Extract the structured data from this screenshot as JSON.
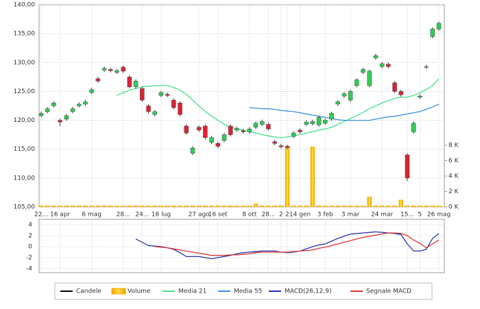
{
  "chart_data": {
    "type": "candlestick",
    "name": "Candele",
    "categories": [
      "22...",
      null,
      null,
      "16 apr",
      null,
      null,
      null,
      null,
      "6 mag",
      null,
      null,
      null,
      null,
      "28...",
      null,
      null,
      "24...",
      null,
      null,
      "16 lug",
      null,
      null,
      null,
      null,
      null,
      "27 ago",
      null,
      null,
      "16 set",
      null,
      null,
      null,
      null,
      "8 ott",
      null,
      null,
      "28...",
      null,
      "2",
      "2",
      null,
      "14 gen",
      null,
      null,
      null,
      "3 feb",
      null,
      null,
      null,
      "3 mar",
      null,
      null,
      null,
      null,
      "24 mar",
      null,
      null,
      null,
      "15...",
      null,
      "5",
      null,
      null,
      "26 mag"
    ],
    "open": [
      120.8,
      121.5,
      122.5,
      120,
      120.2,
      121.5,
      122.5,
      122.8,
      124.8,
      127.2,
      128.7,
      128.8,
      128.3,
      129.2,
      127.5,
      125.8,
      125.5,
      122.5,
      121,
      124.3,
      124.5,
      123.5,
      123,
      119,
      114.3,
      118.8,
      119,
      116.2,
      116,
      116.5,
      119,
      118.3,
      118.2,
      118,
      118.8,
      119.3,
      119.3,
      116.3,
      115.6,
      115.5,
      117.2,
      118.3,
      119.3,
      119.4,
      119.2,
      119.5,
      120.2,
      122.8,
      124.2,
      123.5,
      126,
      128.3,
      126,
      130.8,
      129.3,
      129.7,
      126.5,
      125,
      114,
      118,
      124,
      129.2,
      134.5,
      135.8
    ],
    "high": [
      121.5,
      122.3,
      123.3,
      120.3,
      121.1,
      122.3,
      123.1,
      123.5,
      125.6,
      127.5,
      129.3,
      129.1,
      128.9,
      129.5,
      127.8,
      127.1,
      125.8,
      122.8,
      121.8,
      125.1,
      124.8,
      123.8,
      123.3,
      119.3,
      115.5,
      119.1,
      119.3,
      117.3,
      116.3,
      117.8,
      119.3,
      118.9,
      118.5,
      118.8,
      119.8,
      120.1,
      119.6,
      116.6,
      115.9,
      115.8,
      118.1,
      118.6,
      120,
      120.1,
      120.8,
      120.3,
      121.5,
      123.5,
      124.9,
      125.3,
      127.3,
      129.1,
      128.8,
      131.5,
      130.1,
      130,
      126.8,
      125.3,
      114.3,
      119.8,
      124.5,
      129.6,
      136.1,
      137.1
    ],
    "low": [
      120.5,
      121.2,
      122.2,
      119,
      119.9,
      121.2,
      122.2,
      122.5,
      124.5,
      126.5,
      128.4,
      128.3,
      128,
      128.2,
      125.5,
      125.5,
      123.2,
      121.2,
      120.7,
      124,
      124,
      121.9,
      120.7,
      117.5,
      114,
      118,
      116.7,
      115.9,
      115.2,
      116.2,
      117.2,
      118,
      117.7,
      117.7,
      118.5,
      119,
      118.2,
      115.7,
      115.1,
      115,
      116.9,
      117.7,
      119,
      119.1,
      118.9,
      119.2,
      119.9,
      122.5,
      123.9,
      123.2,
      125.7,
      128,
      125.7,
      130.5,
      129,
      129,
      124.7,
      124.1,
      109.5,
      117.7,
      123.7,
      128.9,
      134.2,
      135.5
    ],
    "close": [
      121.2,
      122,
      123,
      119.7,
      120.8,
      122,
      122.8,
      123.2,
      125.3,
      126.8,
      129,
      128.6,
      128.6,
      128.5,
      125.8,
      126.8,
      123.5,
      121.5,
      121.5,
      124.8,
      124.3,
      122.2,
      121,
      117.8,
      115.2,
      118.3,
      117,
      117,
      115.5,
      117.5,
      117.5,
      118.6,
      118,
      118.5,
      119.5,
      119.8,
      118.5,
      116,
      115.4,
      115.3,
      117.8,
      118,
      119.7,
      119.8,
      120.5,
      120,
      121.2,
      123.2,
      124.6,
      125,
      127,
      128.8,
      128.5,
      131.2,
      129.8,
      129.3,
      125,
      124.4,
      110,
      119.5,
      124.2,
      129.3,
      135.8,
      136.8
    ],
    "up_color": "#33cc55",
    "down_color": "#dd2233",
    "ylim": [
      105,
      140
    ],
    "yticks": [
      {
        "value": 105,
        "label": "105,00"
      },
      {
        "value": 110,
        "label": "110,00"
      },
      {
        "value": 115,
        "label": "115,00"
      },
      {
        "value": 120,
        "label": "120,00"
      },
      {
        "value": 125,
        "label": "125,00"
      },
      {
        "value": 130,
        "label": "130,00"
      },
      {
        "value": 135,
        "label": "135,00"
      },
      {
        "value": 140,
        "label": "140,00"
      }
    ],
    "y2lim": [
      0,
      8000
    ],
    "y2ticks": [
      {
        "value": 0,
        "label": "0 K"
      },
      {
        "value": 2000,
        "label": "2 K"
      },
      {
        "value": 4000,
        "label": "4 K"
      },
      {
        "value": 6000,
        "label": "6 K"
      },
      {
        "value": 8000,
        "label": "8 K"
      }
    ],
    "volume": {
      "name": "Volume",
      "color": "#f5a800",
      "axis": "y2",
      "values": [
        150,
        150,
        150,
        150,
        150,
        150,
        150,
        150,
        150,
        150,
        150,
        150,
        150,
        150,
        150,
        150,
        150,
        150,
        150,
        150,
        150,
        150,
        150,
        150,
        150,
        150,
        150,
        150,
        150,
        150,
        150,
        150,
        150,
        150,
        400,
        150,
        150,
        150,
        150,
        7800,
        150,
        150,
        150,
        7800,
        150,
        150,
        150,
        150,
        150,
        150,
        150,
        150,
        1300,
        150,
        150,
        150,
        150,
        900,
        150,
        150,
        150,
        150,
        150,
        150
      ]
    },
    "series": [
      {
        "name": "Media 21",
        "color": "#44e08a",
        "values": [
          null,
          null,
          null,
          null,
          null,
          null,
          null,
          null,
          null,
          null,
          null,
          null,
          124.3,
          124.8,
          125.2,
          125.5,
          125.8,
          125.9,
          126,
          126,
          126,
          125.7,
          125.2,
          124.5,
          123.5,
          122.5,
          121.5,
          120.7,
          120,
          119.3,
          118.8,
          118.5,
          118.3,
          118,
          117.8,
          117.5,
          117.3,
          117.1,
          117,
          117.1,
          117.3,
          117.5,
          117.8,
          118,
          118.3,
          118.5,
          118.8,
          119.3,
          119.8,
          120.3,
          120.8,
          121.4,
          122,
          122.5,
          123,
          123.4,
          123.8,
          124,
          124,
          124.3,
          124.8,
          125.3,
          126,
          127.2
        ]
      },
      {
        "name": "Media 55",
        "color": "#3a8ee0",
        "values": [
          null,
          null,
          null,
          null,
          null,
          null,
          null,
          null,
          null,
          null,
          null,
          null,
          null,
          null,
          null,
          null,
          null,
          null,
          null,
          null,
          null,
          null,
          null,
          null,
          null,
          null,
          null,
          null,
          null,
          null,
          null,
          null,
          null,
          122.2,
          122.1,
          122,
          122,
          121.9,
          121.7,
          121.6,
          121.5,
          121.3,
          121.1,
          120.9,
          120.7,
          120.5,
          120.3,
          120.1,
          120,
          120,
          120,
          120,
          120,
          120.2,
          120.4,
          120.6,
          120.7,
          120.9,
          121.1,
          121.3,
          121.5,
          121.9,
          122.3,
          122.8
        ]
      }
    ],
    "macd": {
      "ylim": [
        -4,
        4
      ],
      "yticks": [
        4,
        2,
        0,
        -2,
        -4
      ],
      "series": [
        {
          "name": "MACD(26,12,9)",
          "color": "#2233aa",
          "values": [
            null,
            null,
            null,
            null,
            null,
            null,
            null,
            null,
            null,
            null,
            null,
            null,
            null,
            null,
            null,
            1.4,
            0.8,
            0.2,
            0.1,
            0,
            -0.2,
            -0.5,
            -1.1,
            -1.8,
            -1.8,
            -1.8,
            -2,
            -2.2,
            -2,
            -1.8,
            -1.6,
            -1.3,
            -1.1,
            -1,
            -0.9,
            -0.8,
            -0.8,
            -0.8,
            -1,
            -1.1,
            -1,
            -0.8,
            -0.4,
            0,
            0.3,
            0.5,
            1,
            1.5,
            1.9,
            2.3,
            2.4,
            2.5,
            2.6,
            2.7,
            2.6,
            2.5,
            2.4,
            2.2,
            0.5,
            -0.8,
            -0.8,
            -0.5,
            1.5,
            2.4
          ]
        },
        {
          "name": "Segnale MACD",
          "color": "#e03333",
          "values": [
            null,
            null,
            null,
            null,
            null,
            null,
            null,
            null,
            null,
            null,
            null,
            null,
            null,
            null,
            null,
            null,
            null,
            null,
            0,
            -0.1,
            -0.2,
            -0.4,
            -0.6,
            -0.8,
            -1,
            -1.2,
            -1.4,
            -1.6,
            -1.6,
            -1.6,
            -1.5,
            -1.5,
            -1.4,
            -1.3,
            -1.1,
            -1,
            -1,
            -1,
            -1,
            -1,
            -0.9,
            -0.8,
            -0.7,
            -0.6,
            -0.3,
            -0.1,
            0.2,
            0.5,
            0.8,
            1.1,
            1.4,
            1.7,
            1.9,
            2.1,
            2.3,
            2.5,
            2.5,
            2.4,
            2,
            1.2,
            0.6,
            -0.2,
            0.5,
            1.2
          ]
        }
      ]
    },
    "grid": true
  }
}
